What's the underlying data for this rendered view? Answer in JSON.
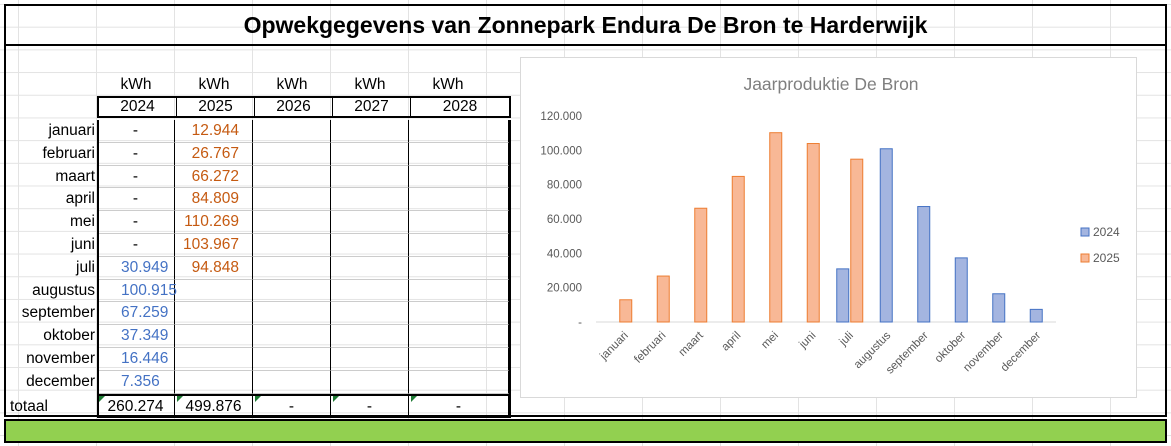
{
  "title": "Opwekgegevens van Zonnepark Endura De Bron te Harderwijk",
  "table": {
    "unit": "kWh",
    "years": [
      "2024",
      "2025",
      "2026",
      "2027",
      "2028"
    ],
    "months": [
      "januari",
      "februari",
      "maart",
      "april",
      "mei",
      "juni",
      "juli",
      "augustus",
      "september",
      "oktober",
      "november",
      "december"
    ],
    "values_2024": [
      "-",
      "-",
      "-",
      "-",
      "-",
      "-",
      "30.949",
      "100.915",
      "67.259",
      "37.349",
      "16.446",
      "7.356"
    ],
    "values_2025": [
      "12.944",
      "26.767",
      "66.272",
      "84.809",
      "110.269",
      "103.967",
      "94.848",
      "",
      "",
      "",
      "",
      ""
    ],
    "total_label": "totaal",
    "totals": [
      "260.274",
      "499.876",
      "-",
      "-",
      "-"
    ]
  },
  "colors": {
    "series_2024": "#4472c4",
    "series_2025": "#ed7d31",
    "green_bar": "#92d050"
  },
  "chart_data": {
    "type": "bar",
    "title": "Jaarproduktie De Bron",
    "categories": [
      "januari",
      "februari",
      "maart",
      "april",
      "mei",
      "juni",
      "juli",
      "augustus",
      "september",
      "oktober",
      "november",
      "december"
    ],
    "series": [
      {
        "name": "2024",
        "values": [
          0,
          0,
          0,
          0,
          0,
          0,
          30949,
          100915,
          67259,
          37349,
          16446,
          7356
        ]
      },
      {
        "name": "2025",
        "values": [
          12944,
          26767,
          66272,
          84809,
          110269,
          103967,
          94848,
          0,
          0,
          0,
          0,
          0
        ]
      }
    ],
    "ylim": [
      0,
      120000
    ],
    "yticks": [
      "-",
      "20.000",
      "40.000",
      "60.000",
      "80.000",
      "100.000",
      "120.000"
    ],
    "grid": false,
    "legend": "right"
  }
}
